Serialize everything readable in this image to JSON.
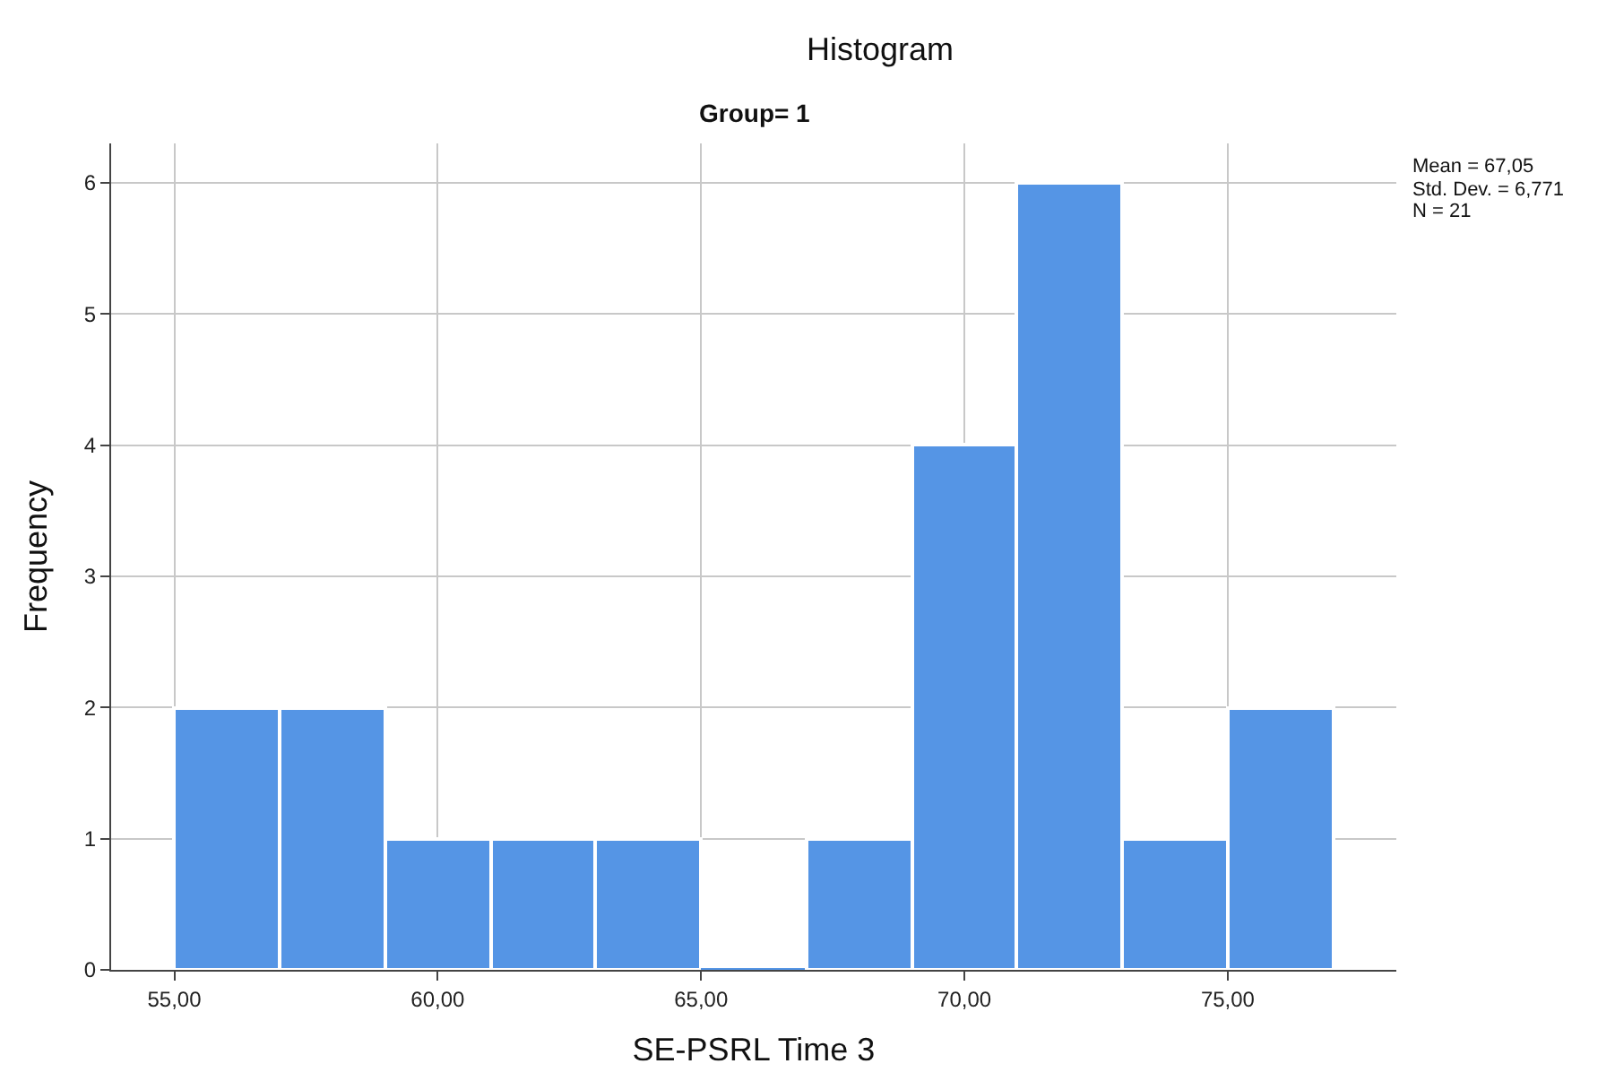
{
  "chart_data": {
    "type": "histogram",
    "title": "Histogram",
    "subtitle": "Group= 1",
    "xlabel": "SE-PSRL Time 3",
    "ylabel": "Frequency",
    "bins": [
      55,
      57,
      59,
      61,
      63,
      65,
      67,
      69,
      71,
      73,
      75,
      77
    ],
    "values": [
      2,
      2,
      1,
      1,
      1,
      0,
      1,
      4,
      6,
      1,
      2
    ],
    "color": "#5595e5",
    "xlim": [
      53.8,
      78.2
    ],
    "xticks": [
      {
        "value": 55,
        "label": "55,00"
      },
      {
        "value": 60,
        "label": "60,00"
      },
      {
        "value": 65,
        "label": "65,00"
      },
      {
        "value": 70,
        "label": "70,00"
      },
      {
        "value": 75,
        "label": "75,00"
      }
    ],
    "ylim": [
      0,
      6.3
    ],
    "yticks": [
      0,
      1,
      2,
      3,
      4,
      5,
      6
    ],
    "grid": true,
    "annotations": [
      "Mean = 67,05",
      "Std. Dev. = 6,771",
      "N = 21"
    ]
  }
}
